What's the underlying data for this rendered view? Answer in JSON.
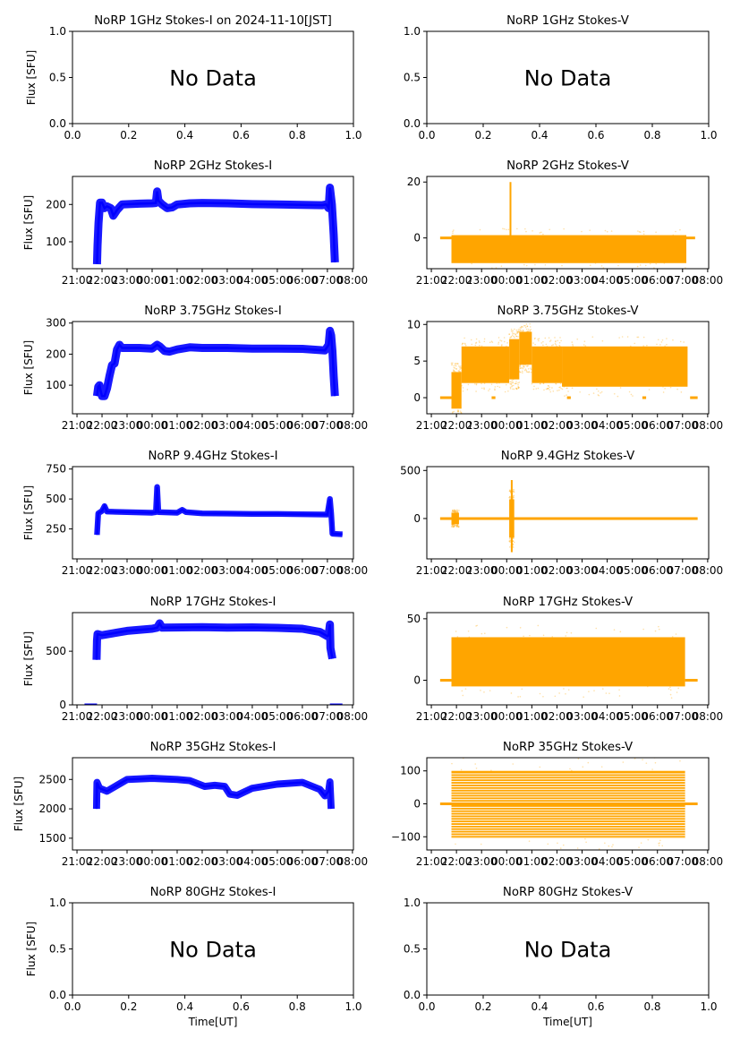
{
  "chart_data": {
    "type": "scatter",
    "layout": "7 rows x 2 columns",
    "x_axis": {
      "label_bottom_row": "Time[UT]",
      "time_ticks": [
        "21:00",
        "22:00",
        "23:00",
        "00:00",
        "01:00",
        "02:00",
        "03:00",
        "04:00",
        "05:00",
        "06:00",
        "07:00",
        "08:00"
      ],
      "time_xlim_hours_from_2100": [
        -0.18,
        11.04
      ],
      "nodata_ticks": [
        "0.0",
        "0.2",
        "0.4",
        "0.6",
        "0.8",
        "1.0"
      ]
    },
    "ylabel": "Flux [SFU]",
    "nodata_text": "No Data",
    "colors": {
      "stokes_i": "#0000ff",
      "stokes_v": "#ffa500"
    },
    "panels": [
      {
        "title": "NoRP 1GHz Stokes-I on 2024-11-10[JST]",
        "kind": "nodata",
        "ylim": [
          0,
          1
        ],
        "yticks": [
          "0.0",
          "0.5",
          "1.0"
        ],
        "show_ylabel": true
      },
      {
        "title": "NoRP 1GHz Stokes-V",
        "kind": "nodata",
        "ylim": [
          0,
          1
        ],
        "yticks": [
          "0.0",
          "0.5",
          "1.0"
        ],
        "show_ylabel": false
      },
      {
        "title": "NoRP 2GHz Stokes-I",
        "kind": "I",
        "ylim": [
          28,
          275
        ],
        "yticks": [
          100,
          200
        ],
        "show_ylabel": true,
        "band": 6,
        "series": [
          [
            0.8,
            40
          ],
          [
            0.82,
            90
          ],
          [
            0.86,
            150
          ],
          [
            0.92,
            205
          ],
          [
            1.0,
            205
          ],
          [
            1.1,
            190
          ],
          [
            1.2,
            195
          ],
          [
            1.35,
            190
          ],
          [
            1.45,
            170
          ],
          [
            1.6,
            185
          ],
          [
            1.8,
            200
          ],
          [
            2.5,
            202
          ],
          [
            3.0,
            203
          ],
          [
            3.15,
            204
          ],
          [
            3.2,
            235
          ],
          [
            3.25,
            210
          ],
          [
            3.4,
            200
          ],
          [
            3.6,
            190
          ],
          [
            3.8,
            192
          ],
          [
            4.0,
            200
          ],
          [
            4.5,
            203
          ],
          [
            5.0,
            204
          ],
          [
            6.0,
            203
          ],
          [
            7.0,
            201
          ],
          [
            8.0,
            200
          ],
          [
            9.0,
            199
          ],
          [
            9.8,
            198
          ],
          [
            9.95,
            200
          ],
          [
            10.05,
            190
          ],
          [
            10.1,
            245
          ],
          [
            10.18,
            200
          ],
          [
            10.25,
            120
          ],
          [
            10.3,
            45
          ]
        ]
      },
      {
        "title": "NoRP 2GHz Stokes-V",
        "kind": "V",
        "ylim": [
          -11,
          22
        ],
        "yticks": [
          0,
          10,
          20
        ],
        "yticks_shown": [
          0,
          20
        ],
        "show_ylabel": false,
        "flat": [
          [
            0.35,
            0.8,
            0
          ],
          [
            10.15,
            10.5,
            0
          ]
        ],
        "cloud": [
          [
            0.8,
            10.15,
            -9,
            1
          ]
        ],
        "spikes": [
          [
            3.15,
            -2,
            20
          ]
        ]
      },
      {
        "title": "NoRP 3.75GHz Stokes-I",
        "kind": "I",
        "ylim": [
          8,
          305
        ],
        "yticks": [
          100,
          200,
          300
        ],
        "show_ylabel": true,
        "band": 8,
        "series": [
          [
            0.8,
            65
          ],
          [
            0.85,
            95
          ],
          [
            0.9,
            100
          ],
          [
            0.95,
            80
          ],
          [
            1.0,
            65
          ],
          [
            1.1,
            65
          ],
          [
            1.2,
            90
          ],
          [
            1.3,
            130
          ],
          [
            1.4,
            165
          ],
          [
            1.5,
            170
          ],
          [
            1.6,
            215
          ],
          [
            1.7,
            230
          ],
          [
            1.8,
            220
          ],
          [
            2.5,
            220
          ],
          [
            3.0,
            218
          ],
          [
            3.2,
            230
          ],
          [
            3.3,
            225
          ],
          [
            3.5,
            210
          ],
          [
            3.7,
            208
          ],
          [
            4.0,
            215
          ],
          [
            4.5,
            222
          ],
          [
            5.0,
            220
          ],
          [
            6.0,
            220
          ],
          [
            7.0,
            218
          ],
          [
            8.0,
            218
          ],
          [
            9.0,
            217
          ],
          [
            9.9,
            212
          ],
          [
            10.05,
            230
          ],
          [
            10.1,
            275
          ],
          [
            10.15,
            260
          ],
          [
            10.2,
            210
          ],
          [
            10.25,
            130
          ],
          [
            10.3,
            65
          ]
        ]
      },
      {
        "title": "NoRP 3.75GHz Stokes-V",
        "kind": "V",
        "ylim": [
          -2.2,
          10.4
        ],
        "yticks": [
          0,
          5,
          10
        ],
        "show_ylabel": false,
        "flat": [
          [
            0.35,
            0.8,
            0
          ],
          [
            2.4,
            2.55,
            0
          ],
          [
            5.4,
            5.55,
            0
          ],
          [
            8.4,
            8.55,
            0
          ],
          [
            10.3,
            10.6,
            0
          ]
        ],
        "cloud": [
          [
            0.8,
            1.2,
            -1.5,
            3.5
          ],
          [
            1.2,
            3.1,
            2,
            7
          ],
          [
            3.1,
            3.5,
            2.5,
            8
          ],
          [
            3.5,
            4.0,
            4.5,
            9
          ],
          [
            4.0,
            5.2,
            2,
            7
          ],
          [
            5.2,
            10.2,
            1.5,
            7
          ]
        ]
      },
      {
        "title": "NoRP 9.4GHz Stokes-I",
        "kind": "I",
        "ylim": [
          0,
          770
        ],
        "yticks": [
          250,
          500,
          750
        ],
        "show_ylabel": true,
        "band": 8,
        "series": [
          [
            0.8,
            200
          ],
          [
            0.85,
            380
          ],
          [
            1.0,
            400
          ],
          [
            1.1,
            440
          ],
          [
            1.2,
            395
          ],
          [
            2.0,
            390
          ],
          [
            3.0,
            385
          ],
          [
            3.15,
            390
          ],
          [
            3.2,
            600
          ],
          [
            3.25,
            390
          ],
          [
            4.0,
            385
          ],
          [
            4.2,
            410
          ],
          [
            4.35,
            390
          ],
          [
            5.0,
            380
          ],
          [
            6.0,
            378
          ],
          [
            7.0,
            375
          ],
          [
            8.0,
            375
          ],
          [
            9.0,
            372
          ],
          [
            10.0,
            370
          ],
          [
            10.1,
            500
          ],
          [
            10.15,
            380
          ],
          [
            10.2,
            210
          ],
          [
            10.6,
            205
          ]
        ]
      },
      {
        "title": "NoRP 9.4GHz Stokes-V",
        "kind": "V",
        "ylim": [
          -420,
          540
        ],
        "yticks": [
          0,
          500
        ],
        "show_ylabel": false,
        "flat": [
          [
            0.35,
            10.6,
            0
          ]
        ],
        "cloud": [
          [
            0.8,
            1.1,
            -60,
            60
          ],
          [
            3.1,
            3.3,
            -200,
            200
          ]
        ],
        "spikes": [
          [
            3.2,
            -350,
            400
          ]
        ]
      },
      {
        "title": "NoRP 17GHz Stokes-I",
        "kind": "I",
        "ylim": [
          0,
          860
        ],
        "yticks": [
          0,
          500
        ],
        "show_ylabel": true,
        "band": 14,
        "series": [
          [
            0.78,
            420
          ],
          [
            0.8,
            600
          ],
          [
            0.82,
            660
          ],
          [
            1.0,
            650
          ],
          [
            2.0,
            690
          ],
          [
            3.0,
            710
          ],
          [
            3.2,
            720
          ],
          [
            3.3,
            760
          ],
          [
            3.4,
            720
          ],
          [
            5.0,
            725
          ],
          [
            6.0,
            720
          ],
          [
            7.0,
            722
          ],
          [
            8.0,
            718
          ],
          [
            9.0,
            710
          ],
          [
            9.7,
            680
          ],
          [
            10.0,
            640
          ],
          [
            10.05,
            650
          ],
          [
            10.1,
            750
          ],
          [
            10.12,
            530
          ],
          [
            10.2,
            430
          ]
        ],
        "ground": [
          [
            0.3,
            0.8
          ],
          [
            10.1,
            10.6
          ]
        ]
      },
      {
        "title": "NoRP 17GHz Stokes-V",
        "kind": "V",
        "ylim": [
          -20,
          55
        ],
        "yticks": [
          0,
          50
        ],
        "show_ylabel": false,
        "flat": [
          [
            0.35,
            0.8,
            0
          ],
          [
            10.1,
            10.6,
            0
          ]
        ],
        "cloud": [
          [
            0.8,
            10.1,
            -5,
            35
          ]
        ]
      },
      {
        "title": "NoRP 35GHz Stokes-I",
        "kind": "I",
        "ylim": [
          1300,
          2870
        ],
        "yticks": [
          1500,
          2000,
          2500
        ],
        "show_ylabel": true,
        "band": 20,
        "series": [
          [
            0.78,
            2000
          ],
          [
            0.8,
            2450
          ],
          [
            0.9,
            2350
          ],
          [
            1.2,
            2300
          ],
          [
            1.6,
            2400
          ],
          [
            2.0,
            2500
          ],
          [
            3.0,
            2520
          ],
          [
            4.0,
            2500
          ],
          [
            4.5,
            2480
          ],
          [
            5.1,
            2380
          ],
          [
            5.5,
            2400
          ],
          [
            5.9,
            2380
          ],
          [
            6.1,
            2250
          ],
          [
            6.4,
            2230
          ],
          [
            7.0,
            2350
          ],
          [
            8.0,
            2420
          ],
          [
            9.0,
            2450
          ],
          [
            9.7,
            2330
          ],
          [
            9.9,
            2220
          ],
          [
            10.05,
            2300
          ],
          [
            10.1,
            2460
          ],
          [
            10.15,
            2000
          ]
        ]
      },
      {
        "title": "NoRP 35GHz Stokes-V",
        "kind": "V",
        "ylim": [
          -140,
          140
        ],
        "yticks": [
          -100,
          0,
          100
        ],
        "show_ylabel": false,
        "flat": [
          [
            0.35,
            10.6,
            0
          ]
        ],
        "cloud": [
          [
            0.8,
            10.1,
            -105,
            100
          ]
        ],
        "striped": true
      },
      {
        "title": "NoRP 80GHz Stokes-I",
        "kind": "nodata",
        "ylim": [
          0,
          1
        ],
        "yticks": [
          "0.0",
          "0.5",
          "1.0"
        ],
        "show_ylabel": true,
        "show_xlabel": true
      },
      {
        "title": "NoRP 80GHz Stokes-V",
        "kind": "nodata",
        "ylim": [
          0,
          1
        ],
        "yticks": [
          "0.0",
          "0.5",
          "1.0"
        ],
        "show_ylabel": false,
        "show_xlabel": true
      }
    ]
  }
}
